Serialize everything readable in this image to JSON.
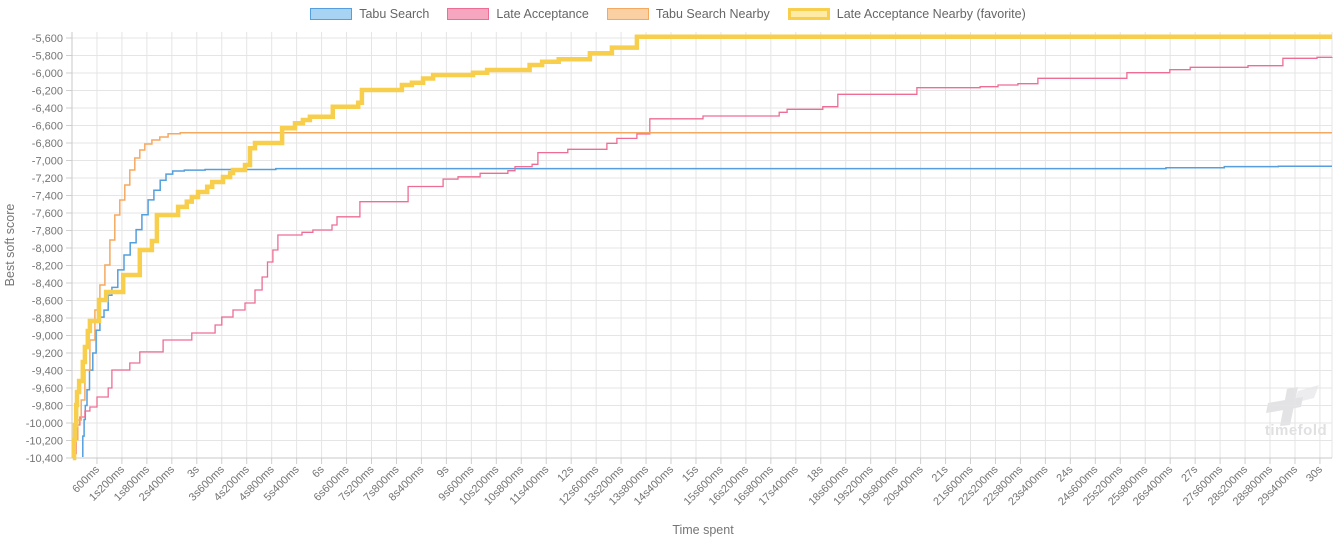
{
  "watermark": {
    "text": "timefold"
  },
  "legend": {
    "position": "top"
  },
  "chart_data": {
    "type": "line",
    "title": "",
    "xlabel": "Time spent",
    "ylabel": "Best soft score",
    "xlim": [
      0,
      30.29
    ],
    "ylim": [
      -10400,
      -5600
    ],
    "grid": true,
    "legend_position": "top",
    "y_ticks": [
      -5600,
      -5800,
      -6000,
      -6200,
      -6400,
      -6600,
      -6800,
      -7000,
      -7200,
      -7400,
      -7600,
      -7800,
      -8000,
      -8200,
      -8400,
      -8600,
      -8800,
      -9000,
      -9200,
      -9400,
      -9600,
      -9800,
      -10000,
      -10200,
      -10400
    ],
    "y_tick_labels": [
      "-5,600",
      "-5,800",
      "-6,000",
      "-6,200",
      "-6,400",
      "-6,600",
      "-6,800",
      "-7,000",
      "-7,200",
      "-7,400",
      "-7,600",
      "-7,800",
      "-8,000",
      "-8,200",
      "-8,400",
      "-8,600",
      "-8,800",
      "-9,000",
      "-9,200",
      "-9,400",
      "-9,600",
      "-9,800",
      "-10,000",
      "-10,200",
      "-10,400"
    ],
    "x_ticks": [
      0.6,
      1.2,
      1.8,
      2.4,
      3,
      3.6,
      4.2,
      4.8,
      5.4,
      6,
      6.6,
      7.2,
      7.8,
      8.4,
      9,
      9.6,
      10.2,
      10.8,
      11.4,
      12,
      12.6,
      13.2,
      13.8,
      14.4,
      15,
      15.6,
      16.2,
      16.8,
      17.4,
      18,
      18.6,
      19.2,
      19.8,
      20.4,
      21,
      21.6,
      22.2,
      22.8,
      23.4,
      24,
      24.6,
      25.2,
      25.8,
      26.4,
      27,
      27.6,
      28.2,
      28.8,
      29.4,
      30
    ],
    "x_tick_labels": [
      "600ms",
      "1s200ms",
      "1s800ms",
      "2s400ms",
      "3s",
      "3s600ms",
      "4s200ms",
      "4s800ms",
      "5s400ms",
      "6s",
      "6s600ms",
      "7s200ms",
      "7s800ms",
      "8s400ms",
      "9s",
      "9s600ms",
      "10s200ms",
      "10s800ms",
      "11s400ms",
      "12s",
      "12s600ms",
      "13s200ms",
      "13s800ms",
      "14s400ms",
      "15s",
      "15s600ms",
      "16s200ms",
      "16s800ms",
      "17s400ms",
      "18s",
      "18s600ms",
      "19s200ms",
      "19s800ms",
      "20s400ms",
      "21s",
      "21s600ms",
      "22s200ms",
      "22s800ms",
      "23s400ms",
      "24s",
      "24s600ms",
      "25s200ms",
      "25s800ms",
      "26s400ms",
      "27s",
      "27s600ms",
      "28s200ms",
      "28s800ms",
      "29s400ms",
      "30s"
    ],
    "series": [
      {
        "name": "Tabu Search",
        "line_color": "#549fdd",
        "legend_fill": "#a8d3f2",
        "line_width": 1.5,
        "step": true,
        "points": [
          [
            0.24,
            -10380
          ],
          [
            0.26,
            -10150
          ],
          [
            0.29,
            -9960
          ],
          [
            0.32,
            -9800
          ],
          [
            0.36,
            -9620
          ],
          [
            0.42,
            -9395
          ],
          [
            0.5,
            -9200
          ],
          [
            0.58,
            -8940
          ],
          [
            0.67,
            -8790
          ],
          [
            0.77,
            -8710
          ],
          [
            0.87,
            -8540
          ],
          [
            0.96,
            -8450
          ],
          [
            1.1,
            -8250
          ],
          [
            1.25,
            -8080
          ],
          [
            1.4,
            -7940
          ],
          [
            1.54,
            -7790
          ],
          [
            1.68,
            -7620
          ],
          [
            1.83,
            -7450
          ],
          [
            1.97,
            -7340
          ],
          [
            2.12,
            -7225
          ],
          [
            2.26,
            -7155
          ],
          [
            2.42,
            -7120
          ],
          [
            2.7,
            -7110
          ],
          [
            3.2,
            -7103
          ],
          [
            4.9,
            -7092
          ],
          [
            26.3,
            -7082
          ],
          [
            27.7,
            -7070
          ],
          [
            29.0,
            -7065
          ],
          [
            30.29,
            -7065
          ]
        ]
      },
      {
        "name": "Late Acceptance",
        "line_color": "#ed6d94",
        "legend_fill": "#f7a6bf",
        "line_width": 1.3,
        "step": true,
        "points": [
          [
            0.07,
            -10350
          ],
          [
            0.1,
            -10160
          ],
          [
            0.14,
            -10023
          ],
          [
            0.19,
            -9931
          ],
          [
            0.31,
            -9863
          ],
          [
            0.43,
            -9817
          ],
          [
            0.6,
            -9703
          ],
          [
            0.87,
            -9600
          ],
          [
            0.96,
            -9394
          ],
          [
            1.39,
            -9314
          ],
          [
            1.63,
            -9188
          ],
          [
            2.19,
            -9051
          ],
          [
            2.88,
            -8971
          ],
          [
            3.44,
            -8880
          ],
          [
            3.6,
            -8789
          ],
          [
            3.87,
            -8709
          ],
          [
            4.16,
            -8629
          ],
          [
            4.4,
            -8480
          ],
          [
            4.57,
            -8331
          ],
          [
            4.7,
            -8160
          ],
          [
            4.83,
            -8023
          ],
          [
            4.95,
            -7851
          ],
          [
            5.53,
            -7820
          ],
          [
            5.79,
            -7794
          ],
          [
            6.25,
            -7737
          ],
          [
            6.37,
            -7643
          ],
          [
            6.92,
            -7471
          ],
          [
            8.08,
            -7297
          ],
          [
            8.92,
            -7213
          ],
          [
            9.28,
            -7186
          ],
          [
            9.81,
            -7146
          ],
          [
            10.48,
            -7116
          ],
          [
            10.65,
            -7070
          ],
          [
            11.06,
            -7043
          ],
          [
            11.2,
            -6910
          ],
          [
            11.92,
            -6872
          ],
          [
            12.86,
            -6804
          ],
          [
            13.1,
            -6747
          ],
          [
            13.58,
            -6697
          ],
          [
            13.89,
            -6523
          ],
          [
            15.17,
            -6491
          ],
          [
            17.0,
            -6449
          ],
          [
            17.19,
            -6415
          ],
          [
            18.05,
            -6385
          ],
          [
            18.41,
            -6243
          ],
          [
            20.31,
            -6168
          ],
          [
            21.83,
            -6156
          ],
          [
            22.26,
            -6137
          ],
          [
            22.74,
            -6122
          ],
          [
            23.22,
            -6061
          ],
          [
            25.36,
            -5997
          ],
          [
            26.39,
            -5962
          ],
          [
            26.88,
            -5935
          ],
          [
            28.27,
            -5916
          ],
          [
            29.11,
            -5832
          ],
          [
            29.93,
            -5820
          ],
          [
            30.29,
            -5818
          ]
        ]
      },
      {
        "name": "Tabu Search Nearby",
        "line_color": "#f5a960",
        "legend_fill": "#fbd0a2",
        "line_width": 1.5,
        "step": true,
        "points": [
          [
            0.02,
            -10350
          ],
          [
            0.07,
            -10190
          ],
          [
            0.14,
            -9966
          ],
          [
            0.22,
            -9737
          ],
          [
            0.31,
            -9394
          ],
          [
            0.43,
            -9051
          ],
          [
            0.55,
            -8709
          ],
          [
            0.67,
            -8423
          ],
          [
            0.79,
            -8194
          ],
          [
            0.91,
            -7909
          ],
          [
            1.03,
            -7623
          ],
          [
            1.15,
            -7451
          ],
          [
            1.27,
            -7280
          ],
          [
            1.39,
            -7109
          ],
          [
            1.51,
            -6971
          ],
          [
            1.63,
            -6880
          ],
          [
            1.75,
            -6811
          ],
          [
            1.92,
            -6766
          ],
          [
            2.11,
            -6731
          ],
          [
            2.31,
            -6695
          ],
          [
            2.6,
            -6682
          ],
          [
            30.29,
            -6682
          ]
        ]
      },
      {
        "name": "Late Acceptance Nearby (favorite)",
        "line_color": "#f7cf4d",
        "legend_fill": "#fdeba6",
        "line_width": 4.5,
        "step": true,
        "points": [
          [
            0.02,
            -10400
          ],
          [
            0.05,
            -10194
          ],
          [
            0.07,
            -10023
          ],
          [
            0.1,
            -9794
          ],
          [
            0.12,
            -9646
          ],
          [
            0.17,
            -9520
          ],
          [
            0.26,
            -9303
          ],
          [
            0.31,
            -9131
          ],
          [
            0.38,
            -8949
          ],
          [
            0.43,
            -8834
          ],
          [
            0.65,
            -8594
          ],
          [
            0.82,
            -8503
          ],
          [
            1.23,
            -8309
          ],
          [
            1.63,
            -8023
          ],
          [
            1.92,
            -7920
          ],
          [
            2.04,
            -7623
          ],
          [
            2.55,
            -7530
          ],
          [
            2.76,
            -7470
          ],
          [
            2.88,
            -7417
          ],
          [
            3.03,
            -7360
          ],
          [
            3.25,
            -7300
          ],
          [
            3.37,
            -7246
          ],
          [
            3.63,
            -7189
          ],
          [
            3.8,
            -7143
          ],
          [
            3.87,
            -7109
          ],
          [
            4.16,
            -7051
          ],
          [
            4.28,
            -6861
          ],
          [
            4.4,
            -6800
          ],
          [
            5.05,
            -6632
          ],
          [
            5.36,
            -6575
          ],
          [
            5.55,
            -6537
          ],
          [
            5.72,
            -6499
          ],
          [
            6.27,
            -6385
          ],
          [
            6.88,
            -6340
          ],
          [
            6.97,
            -6194
          ],
          [
            7.93,
            -6137
          ],
          [
            8.17,
            -6111
          ],
          [
            8.44,
            -6063
          ],
          [
            8.68,
            -6023
          ],
          [
            9.64,
            -5997
          ],
          [
            9.98,
            -5966
          ],
          [
            11.0,
            -5909
          ],
          [
            11.3,
            -5871
          ],
          [
            11.7,
            -5843
          ],
          [
            12.45,
            -5775
          ],
          [
            12.98,
            -5710
          ],
          [
            13.58,
            -5585
          ],
          [
            30.29,
            -5585
          ]
        ]
      }
    ]
  }
}
